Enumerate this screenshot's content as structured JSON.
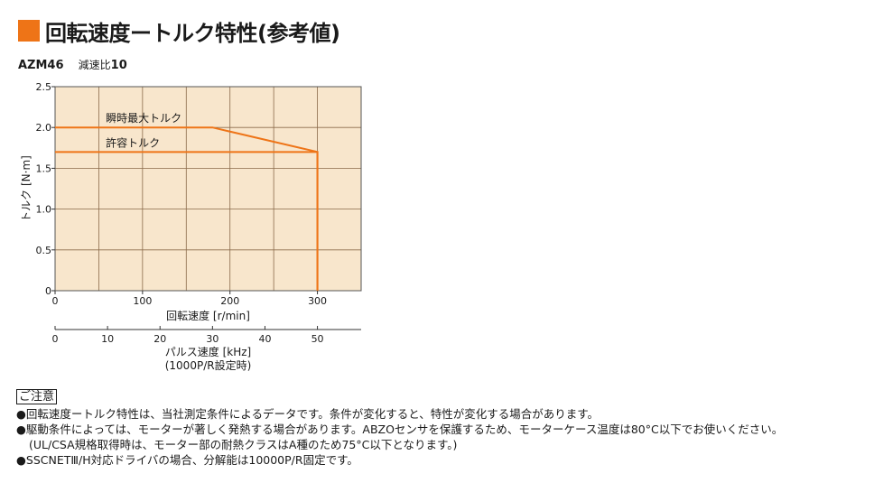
{
  "header": {
    "title": "回転速度ートルク特性(参考値)",
    "model": "AZM46",
    "ratio_label": "減速比",
    "ratio_value": "10"
  },
  "colors": {
    "accent": "#ee7417",
    "plot_bg": "#f8e6cc",
    "grid": "#8a6a4a",
    "text": "#1a1a1a"
  },
  "chart_data": {
    "type": "line",
    "xlabel": "回転速度 [r/min]",
    "ylabel": "トルク [N·m]",
    "xlim": [
      0,
      350
    ],
    "ylim": [
      0,
      2.5
    ],
    "x_ticks": [
      "0",
      "100",
      "200",
      "300"
    ],
    "y_ticks": [
      "0",
      "0.5",
      "1.0",
      "1.5",
      "2.0",
      "2.5"
    ],
    "grid": true,
    "series": [
      {
        "name": "瞬時最大トルク",
        "x": [
          0,
          180,
          300,
          300
        ],
        "y": [
          2.0,
          2.0,
          1.7,
          0
        ]
      },
      {
        "name": "許容トルク",
        "x": [
          0,
          300,
          300
        ],
        "y": [
          1.7,
          1.7,
          0
        ]
      }
    ],
    "secondary_axis": {
      "label_line1": "パルス速度 [kHz]",
      "label_line2": "(1000P/R設定時)",
      "ticks": [
        "0",
        "10",
        "20",
        "30",
        "40",
        "50"
      ],
      "values": [
        0,
        10,
        20,
        30,
        40,
        50
      ]
    }
  },
  "notes": {
    "heading": "ご注意",
    "items": [
      "●回転速度ートルク特性は、当社測定条件によるデータです。条件が変化すると、特性が変化する場合があります。",
      "●駆動条件によっては、モーターが著しく発熱する場合があります。ABZOセンサを保護するため、モーターケース温度は80°C以下でお使いください。",
      "(UL/CSA規格取得時は、モーター部の耐熱クラスはA種のため75°C以下となります。)",
      "●SSCNETⅢ/H対応ドライバの場合、分解能は10000P/R固定です。"
    ]
  }
}
